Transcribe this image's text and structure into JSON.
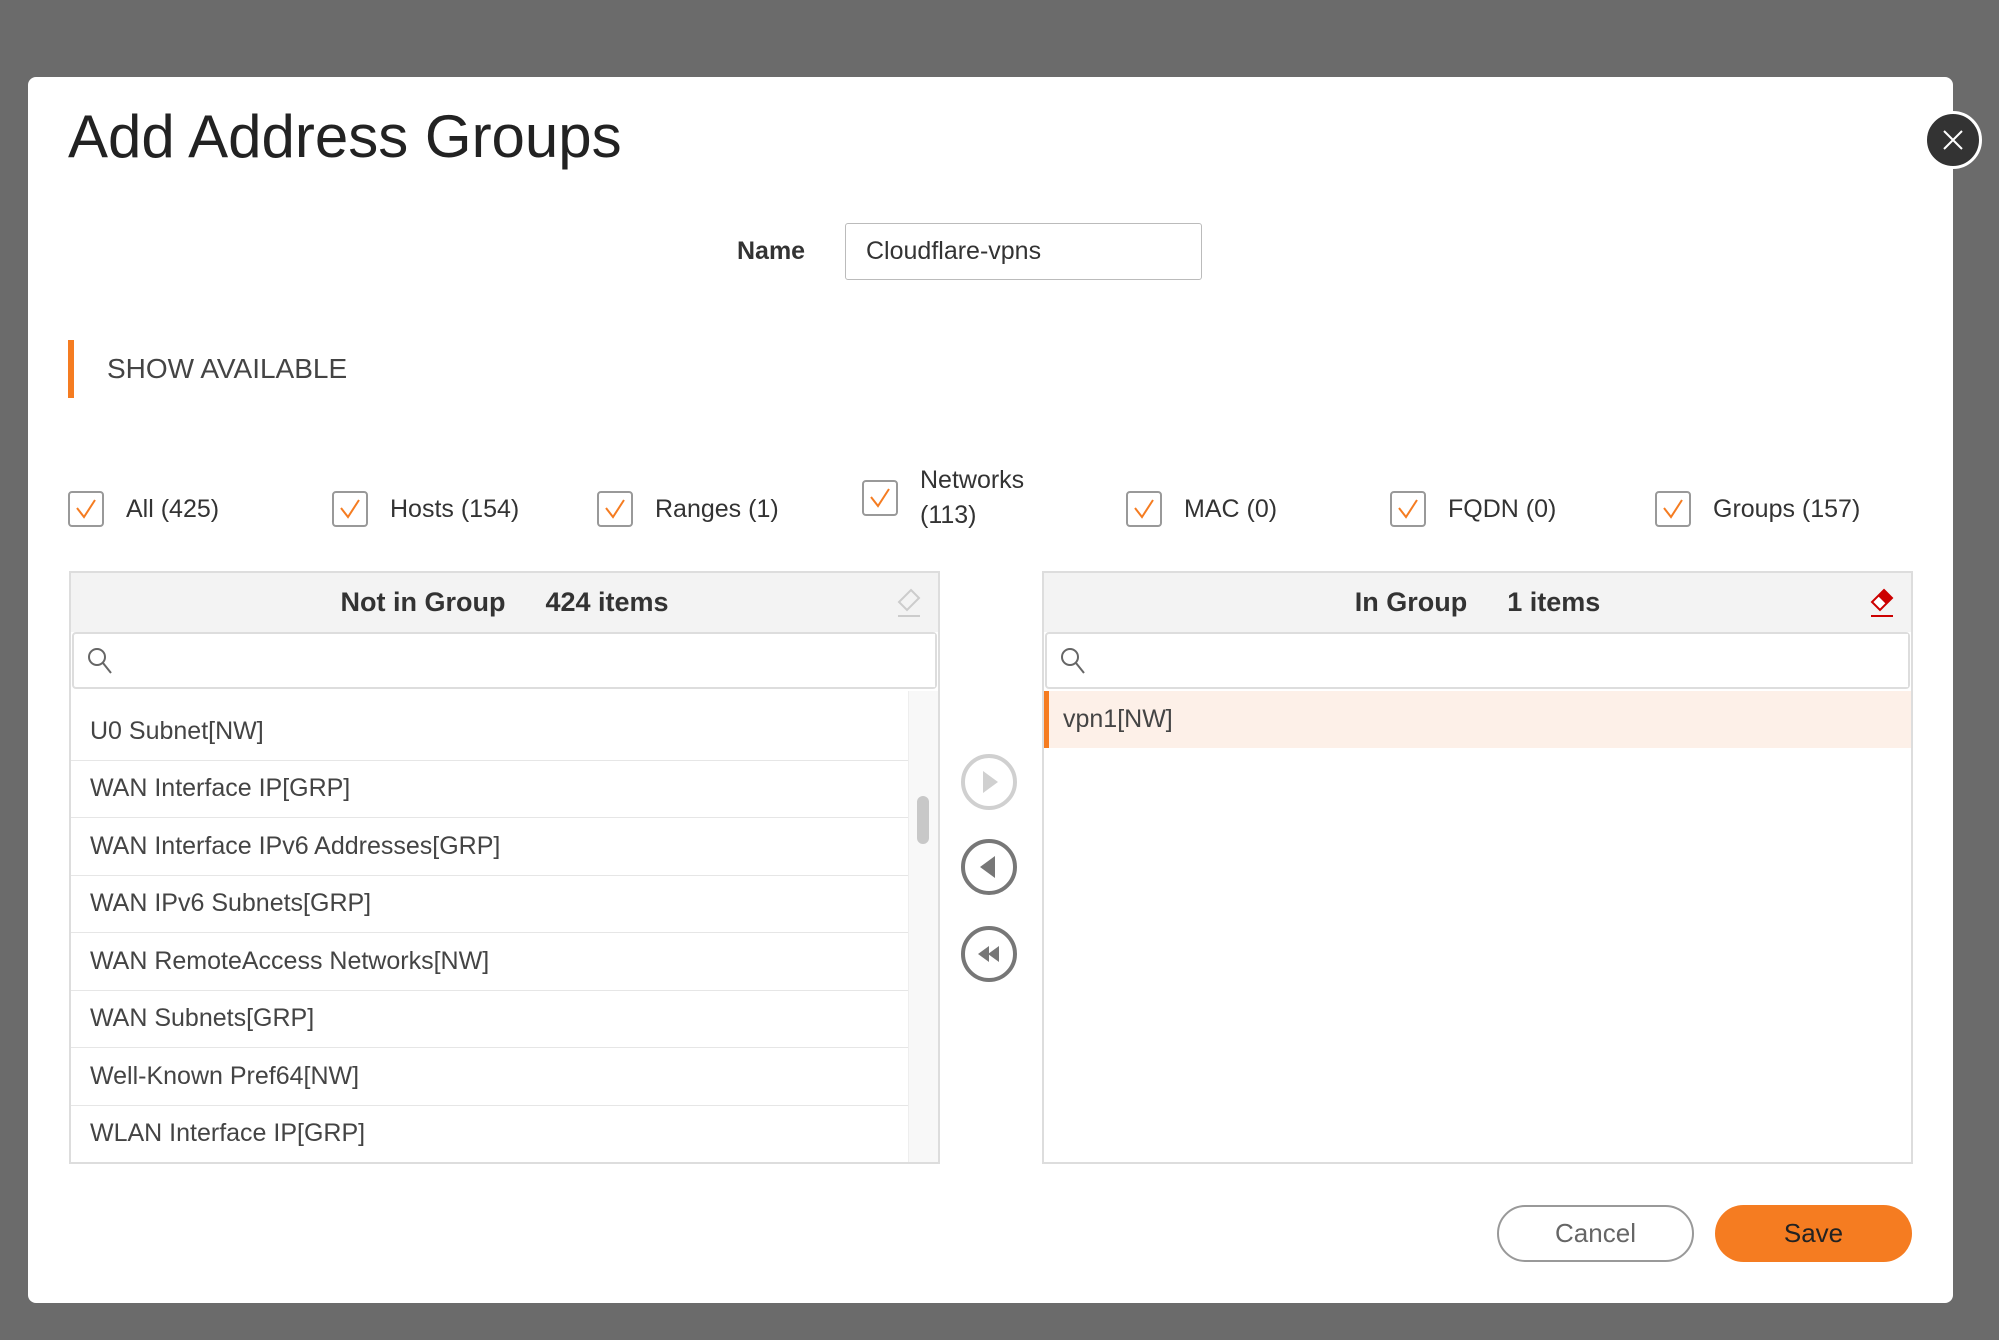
{
  "dialog": {
    "title": "Add Address Groups",
    "name_label": "Name",
    "name_value": "Cloudflare-vpns",
    "section_title": "SHOW AVAILABLE"
  },
  "filters": [
    {
      "label": "All (425)",
      "checked": true
    },
    {
      "label": "Hosts (154)",
      "checked": true
    },
    {
      "label": "Ranges (1)",
      "checked": true
    },
    {
      "label": "Networks (113)",
      "checked": true
    },
    {
      "label": "MAC (0)",
      "checked": true
    },
    {
      "label": "FQDN (0)",
      "checked": true
    },
    {
      "label": "Groups (157)",
      "checked": true
    }
  ],
  "not_in_group": {
    "title": "Not in Group",
    "count": "424 items",
    "search_placeholder": "",
    "items": [
      "U0 Subnet[NW]",
      "WAN Interface IP[GRP]",
      "WAN Interface IPv6 Addresses[GRP]",
      "WAN IPv6 Subnets[GRP]",
      "WAN RemoteAccess Networks[NW]",
      "WAN Subnets[GRP]",
      "Well-Known Pref64[NW]",
      "WLAN Interface IP[GRP]"
    ]
  },
  "in_group": {
    "title": "In Group",
    "count": "1 items",
    "search_placeholder": "",
    "items": [
      "vpn1[NW]"
    ]
  },
  "buttons": {
    "cancel": "Cancel",
    "save": "Save"
  },
  "colors": {
    "accent": "#f57c21",
    "eraser_active": "#cc0000",
    "selected_row": "#fdf0e8"
  }
}
